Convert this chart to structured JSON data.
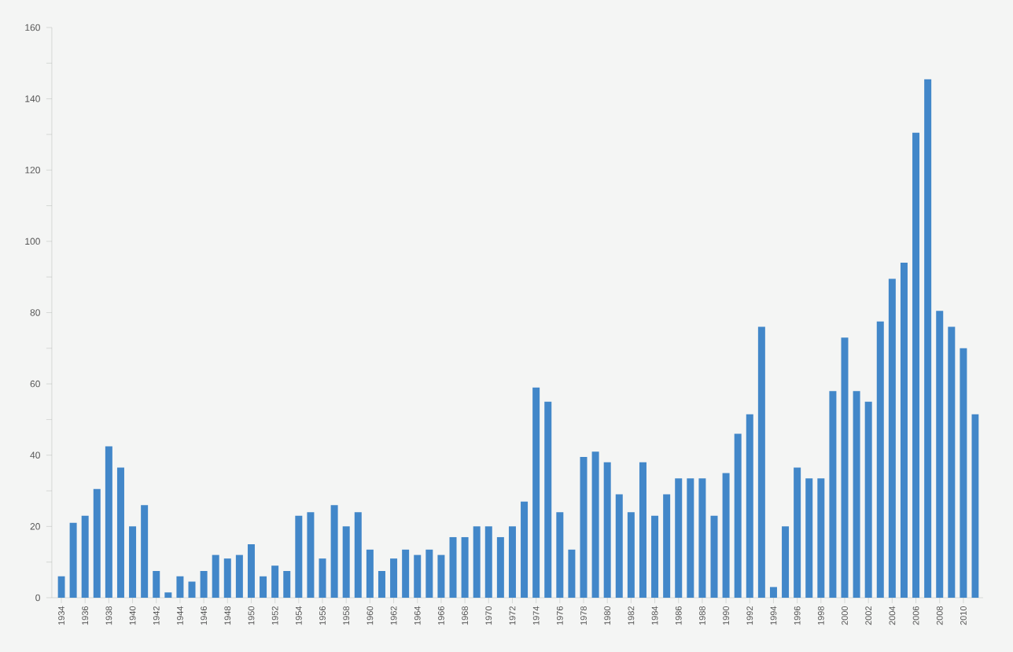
{
  "chart_data": {
    "type": "bar",
    "categories": [
      "1934",
      null,
      "1936",
      null,
      "1938",
      null,
      "1940",
      null,
      "1942",
      null,
      "1944",
      null,
      "1946",
      null,
      "1948",
      null,
      "1950",
      null,
      "1952",
      null,
      "1954",
      null,
      "1956",
      null,
      "1958",
      null,
      "1960",
      null,
      "1962",
      null,
      "1964",
      null,
      "1966",
      null,
      "1968",
      null,
      "1970",
      null,
      "1972",
      null,
      "1974",
      null,
      "1976",
      null,
      "1978",
      null,
      "1980",
      null,
      "1982",
      null,
      "1984",
      null,
      "1986",
      null,
      "1988",
      null,
      "1990",
      null,
      "1992",
      null,
      "1994",
      null,
      "1996",
      null,
      "1998",
      null,
      "2000",
      null,
      "2002",
      null,
      "2004",
      null,
      "2006",
      null,
      "2008",
      null,
      "2010",
      null
    ],
    "values": [
      6,
      21,
      23,
      30.5,
      42.5,
      36.5,
      20,
      26,
      7.5,
      1.5,
      6,
      4.5,
      7.5,
      12,
      11,
      12,
      15,
      6,
      9,
      7.5,
      23,
      24,
      11,
      26,
      20,
      24,
      13.5,
      7.5,
      11,
      13.5,
      12,
      13.5,
      12,
      17,
      17,
      20,
      20,
      17,
      20,
      27,
      59,
      55,
      24,
      13.5,
      39.5,
      41,
      38,
      29,
      24,
      38,
      23,
      29,
      33.5,
      33.5,
      33.5,
      23,
      35,
      46,
      51.5,
      76,
      3,
      20,
      36.5,
      33.5,
      33.5,
      58,
      73,
      58,
      55,
      77.5,
      89.5,
      94,
      130.5,
      145.5,
      80.5,
      76,
      70,
      51.5
    ],
    "color": "#4287c9",
    "ylim": [
      0,
      160
    ],
    "yticks": [
      0,
      {
        "value": 10,
        "label": null
      },
      20,
      {
        "value": 30,
        "label": null
      },
      40,
      {
        "value": 50,
        "label": null
      },
      60,
      {
        "value": 70,
        "label": null
      },
      80,
      {
        "value": 90,
        "label": null
      },
      100,
      {
        "value": 110,
        "label": null
      },
      120,
      {
        "value": 130,
        "label": null
      },
      140,
      {
        "value": 150,
        "label": null
      },
      160
    ],
    "grid": false
  }
}
